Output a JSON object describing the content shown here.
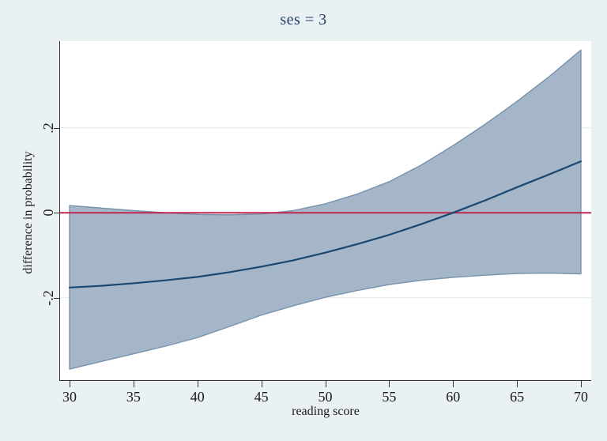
{
  "figure": {
    "title": "ses = 3",
    "background_color": "#eaf1f3",
    "plot_background_color": "#ffffff",
    "title_color": "#24406b"
  },
  "chart_data": {
    "type": "line",
    "title": "ses = 3",
    "xlabel": "reading score",
    "ylabel": "difference in probability",
    "xlim": [
      30,
      70
    ],
    "ylim": [
      -0.394,
      0.404
    ],
    "grid": true,
    "legend": "none",
    "x_ticks": [
      30,
      35,
      40,
      45,
      50,
      55,
      60,
      65,
      70
    ],
    "y_ticks": [
      {
        "label": ".2",
        "value": 0.2
      },
      {
        "label": "0",
        "value": 0
      },
      {
        "label": "-.2",
        "value": -0.2
      }
    ],
    "x": [
      30,
      32.5,
      35,
      37.5,
      40,
      42.5,
      45,
      47.5,
      50,
      52.5,
      55,
      57.5,
      60,
      62.5,
      65,
      67.5,
      70
    ],
    "series": [
      {
        "name": "difference in probability (prediction)",
        "role": "mean",
        "values": [
          -0.176,
          -0.172,
          -0.166,
          -0.159,
          -0.151,
          -0.14,
          -0.127,
          -0.112,
          -0.094,
          -0.074,
          -0.052,
          -0.027,
          0.0,
          0.029,
          0.06,
          0.09,
          0.121
        ]
      },
      {
        "name": "95% CI upper bound",
        "role": "ci_upper",
        "values": [
          0.017,
          0.011,
          0.005,
          0.0,
          -0.004,
          -0.005,
          -0.003,
          0.005,
          0.021,
          0.044,
          0.073,
          0.112,
          0.158,
          0.208,
          0.262,
          0.32,
          0.383
        ]
      },
      {
        "name": "95% CI lower bound",
        "role": "ci_lower",
        "values": [
          -0.368,
          -0.35,
          -0.332,
          -0.314,
          -0.294,
          -0.268,
          -0.241,
          -0.219,
          -0.199,
          -0.183,
          -0.169,
          -0.159,
          -0.152,
          -0.147,
          -0.143,
          -0.142,
          -0.144
        ]
      }
    ],
    "zero_line": {
      "value": 0,
      "color": "#bf2650"
    },
    "colors": {
      "line": "#1a476f",
      "band_fill": "#a5b6c8",
      "band_edge": "#7792ad",
      "grid": "#e2ecf2",
      "axis": "#333333",
      "tick_text": "#1a1a1a"
    }
  }
}
